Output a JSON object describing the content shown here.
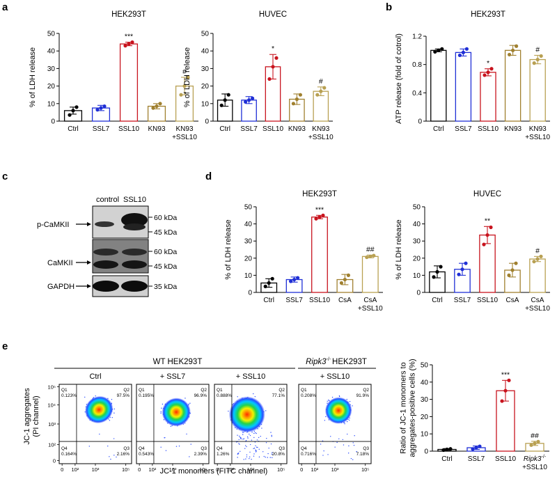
{
  "panel_labels": [
    "a",
    "b",
    "c",
    "d",
    "e"
  ],
  "group_labels": {
    "wt_header": "WT HEK293T",
    "ko_header_gene": "Ripk3",
    "ko_header_suffix": "-/- ",
    "ko_header_cell": "HEK293T"
  },
  "colors": {
    "Ctrl": "#000000",
    "SSL7": "#1f2fd6",
    "SSL10": "#c8141e",
    "KN93": "#a0802f",
    "KN93+SSL10": "#b8a052",
    "CsA": "#a0802f",
    "CsA+SSL10": "#b8a052",
    "Ripk3+SSL10": "#b8a052"
  },
  "chart_data": [
    {
      "id": "a1",
      "type": "bar",
      "title": "HEK293T",
      "ylabel": "% of LDH release",
      "ylim": [
        0,
        50
      ],
      "yticks": [
        "0",
        "10",
        "20",
        "30",
        "40",
        "50"
      ],
      "categories": [
        "Ctrl",
        "SSL7",
        "SSL10",
        "KN93",
        "KN93\n+SSL10"
      ],
      "values": [
        6,
        7.5,
        44,
        8.5,
        20
      ],
      "errors": [
        2,
        1.5,
        1,
        1.5,
        5
      ],
      "points": [
        [
          3.5,
          6,
          8
        ],
        [
          6.5,
          7.5,
          8.5
        ],
        [
          43,
          44,
          45
        ],
        [
          7.5,
          8.5,
          10
        ],
        [
          15,
          20,
          25
        ]
      ],
      "annotations": [
        "",
        "",
        "***",
        "",
        "#"
      ]
    },
    {
      "id": "a2",
      "type": "bar",
      "title": "HUVEC",
      "ylabel": "% of LDH release",
      "ylim": [
        0,
        50
      ],
      "yticks": [
        "0",
        "10",
        "20",
        "30",
        "40",
        "50"
      ],
      "categories": [
        "Ctrl",
        "SSL7",
        "SSL10",
        "KN93",
        "KN93\n+SSL10"
      ],
      "values": [
        12,
        12,
        31,
        12.5,
        17
      ],
      "errors": [
        3.5,
        2,
        7,
        3,
        2.5
      ],
      "points": [
        [
          9,
          12,
          15
        ],
        [
          11,
          12,
          13
        ],
        [
          24,
          31,
          36
        ],
        [
          10,
          12.5,
          15
        ],
        [
          15,
          17,
          19
        ]
      ],
      "annotations": [
        "",
        "",
        "*",
        "",
        "#"
      ]
    },
    {
      "id": "b",
      "type": "bar",
      "title": "HEK293T",
      "ylabel": "ATP release (fold of cotrol)",
      "ylim": [
        0,
        1.2
      ],
      "yticks": [
        "0",
        "0.4",
        "0.8",
        "1.2"
      ],
      "categories": [
        "Ctrl",
        "SSL7",
        "SSL10",
        "KN93",
        "KN93\n+SSL10"
      ],
      "values": [
        1.0,
        0.97,
        0.69,
        1.0,
        0.87
      ],
      "errors": [
        0.02,
        0.05,
        0.05,
        0.07,
        0.06
      ],
      "points": [
        [
          0.98,
          1.0,
          1.02
        ],
        [
          0.93,
          0.97,
          1.02
        ],
        [
          0.65,
          0.69,
          0.74
        ],
        [
          0.94,
          1.0,
          1.06
        ],
        [
          0.82,
          0.87,
          0.92
        ]
      ],
      "annotations": [
        "",
        "",
        "*",
        "",
        "#"
      ]
    },
    {
      "id": "d1",
      "type": "bar",
      "title": "HEK293T",
      "ylabel": "% of LDH release",
      "ylim": [
        0,
        50
      ],
      "yticks": [
        "0",
        "10",
        "20",
        "30",
        "40",
        "50"
      ],
      "categories": [
        "Ctrl",
        "SSL7",
        "SSL10",
        "CsA",
        "CsA\n+SSL10"
      ],
      "values": [
        5.5,
        7.5,
        44,
        7.5,
        21
      ],
      "errors": [
        2.5,
        1.5,
        1,
        3,
        0.8
      ],
      "points": [
        [
          3.5,
          5.5,
          8
        ],
        [
          6.5,
          7.5,
          8.5
        ],
        [
          43,
          44,
          45
        ],
        [
          5.5,
          7.5,
          10
        ],
        [
          20.5,
          21,
          21.5
        ]
      ],
      "annotations": [
        "",
        "",
        "***",
        "",
        "##"
      ]
    },
    {
      "id": "d2",
      "type": "bar",
      "title": "HUVEC",
      "ylabel": "% of LDH release",
      "ylim": [
        0,
        50
      ],
      "yticks": [
        "0",
        "10",
        "20",
        "30",
        "40",
        "50"
      ],
      "categories": [
        "Ctrl",
        "SSL7",
        "SSL10",
        "CsA",
        "CsA\n+SSL10"
      ],
      "values": [
        12,
        13.5,
        33.5,
        13,
        19.5
      ],
      "errors": [
        3.5,
        3.5,
        5,
        4,
        1.5
      ],
      "points": [
        [
          9,
          12,
          15
        ],
        [
          10.5,
          13.5,
          17
        ],
        [
          28,
          33.5,
          38
        ],
        [
          10,
          13,
          17
        ],
        [
          18,
          19.5,
          21
        ]
      ],
      "annotations": [
        "",
        "",
        "**",
        "",
        "#"
      ]
    },
    {
      "id": "e_bar",
      "type": "bar",
      "title": "",
      "ylabel": "Ratio of JC-1 monomers to\naggregates-positive cells (%)",
      "ylim": [
        0,
        50
      ],
      "yticks": [
        "0",
        "10",
        "20",
        "30",
        "40",
        "50"
      ],
      "categories": [
        "Ctrl",
        "SSL7",
        "SSL10",
        "Ripk3-/-\n+SSL10"
      ],
      "values": [
        1,
        2,
        35,
        4.5
      ],
      "errors": [
        0.5,
        1,
        6,
        1.2
      ],
      "points": [
        [
          0.6,
          1,
          1.3
        ],
        [
          1.2,
          2,
          2.8
        ],
        [
          29,
          35,
          41
        ],
        [
          3.5,
          4.5,
          5.5
        ]
      ],
      "annotations": [
        "",
        "",
        "***",
        "##"
      ]
    },
    {
      "id": "e_flow",
      "type": "scatter",
      "xlabel": "JC-1 monomers (FITC channel)",
      "ylabel": "JC-1 aggregates\n(PI channel)",
      "x_ticks": [
        "0",
        "10²",
        "10³",
        "10⁵"
      ],
      "y_ticks": [
        "0",
        "10²",
        "10³",
        "10⁴",
        "10⁵"
      ],
      "plots": [
        {
          "title": "Ctrl",
          "quadrants": {
            "Q1": "0.123%",
            "Q2": "97.5%",
            "Q3": "2.16%",
            "Q4": "0.164%"
          }
        },
        {
          "title": "+ SSL7",
          "quadrants": {
            "Q1": "0.195%",
            "Q2": "96.9%",
            "Q3": "2.39%",
            "Q4": "0.543%"
          }
        },
        {
          "title": "+ SSL10",
          "quadrants": {
            "Q1": "0.888%",
            "Q2": "77.1%",
            "Q3": "20.8%",
            "Q4": "1.26%"
          }
        },
        {
          "title": "+ SSL10",
          "quadrants": {
            "Q1": "0.208%",
            "Q2": "91.9%",
            "Q3": "7.18%",
            "Q4": "0.716%"
          }
        }
      ]
    }
  ],
  "western_blot": {
    "lane_labels": [
      "control",
      "SSL10"
    ],
    "rows": [
      {
        "label": "p-CaMKII",
        "markers": [
          "60 kDa",
          "45 kDa"
        ]
      },
      {
        "label": "CaMKII",
        "markers": [
          "60 kDa",
          "45 kDa"
        ]
      },
      {
        "label": "GAPDH",
        "markers": [
          "35 kDa"
        ]
      }
    ]
  }
}
